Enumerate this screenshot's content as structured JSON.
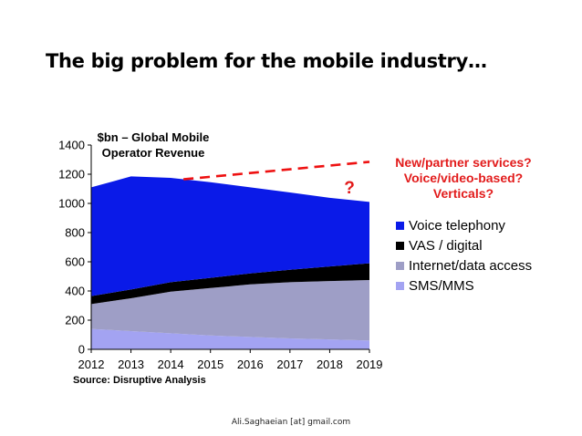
{
  "slide": {
    "title": "The big problem for the mobile industry…",
    "footer": "Ali.Saghaeian [at] gmail.com"
  },
  "chart_data": {
    "type": "area",
    "stacked": true,
    "title_lines": [
      "$bn – Global Mobile",
      "Operator Revenue"
    ],
    "x": [
      2012,
      2013,
      2014,
      2015,
      2016,
      2017,
      2018,
      2019
    ],
    "ylim": [
      0,
      1400
    ],
    "yticks": [
      0,
      200,
      400,
      600,
      800,
      1000,
      1200,
      1400
    ],
    "grid": false,
    "legend_position": "right",
    "series": [
      {
        "name": "SMS/MMS",
        "color": "#a3a3f2",
        "values": [
          140,
          125,
          110,
          95,
          85,
          75,
          68,
          60
        ]
      },
      {
        "name": "Internet/data access",
        "color": "#9e9ec6",
        "values": [
          170,
          225,
          285,
          325,
          360,
          385,
          400,
          415
        ]
      },
      {
        "name": "VAS / digital",
        "color": "#000000",
        "values": [
          55,
          60,
          65,
          70,
          75,
          85,
          100,
          115
        ]
      },
      {
        "name": "Voice telephony",
        "color": "#0a1ae8",
        "values": [
          745,
          775,
          715,
          655,
          590,
          530,
          470,
          420
        ]
      }
    ],
    "legend_order": [
      "Voice telephony",
      "VAS / digital",
      "Internet/data access",
      "SMS/MMS"
    ],
    "trend_line": {
      "x": [
        2014,
        2019
      ],
      "y": [
        1165,
        1285
      ],
      "color": "#ee1111"
    },
    "annotations": {
      "question_mark": "?",
      "question_lines": [
        "New/partner services?",
        "Voice/video-based?",
        "Verticals?"
      ],
      "question_color": "#e21b1b"
    },
    "source": "Source: Disruptive Analysis"
  }
}
